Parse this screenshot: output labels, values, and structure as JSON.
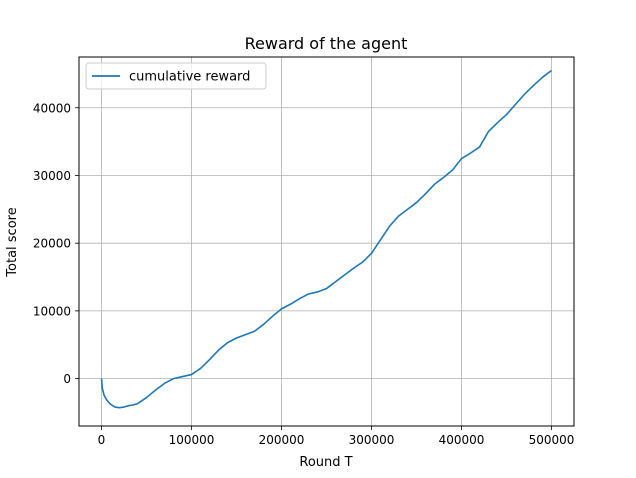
{
  "chart_data": {
    "type": "line",
    "title": "Reward of the agent",
    "xlabel": "Round T",
    "ylabel": "Total score",
    "xlim": [
      -25000,
      525000
    ],
    "ylim": [
      -7000,
      47500
    ],
    "xticks": [
      0,
      100000,
      200000,
      300000,
      400000,
      500000
    ],
    "xtick_labels": [
      "0",
      "100000",
      "200000",
      "300000",
      "400000",
      "500000"
    ],
    "yticks": [
      0,
      10000,
      20000,
      30000,
      40000
    ],
    "ytick_labels": [
      "0",
      "10000",
      "20000",
      "30000",
      "40000"
    ],
    "grid": true,
    "legend": {
      "position": "top-left"
    },
    "series": [
      {
        "name": "cumulative reward",
        "color": "#1f77b4",
        "x": [
          0,
          1000,
          3000,
          6000,
          10000,
          15000,
          20000,
          25000,
          30000,
          35000,
          40000,
          50000,
          60000,
          70000,
          80000,
          90000,
          100000,
          110000,
          120000,
          130000,
          140000,
          150000,
          160000,
          170000,
          180000,
          190000,
          200000,
          210000,
          220000,
          230000,
          240000,
          250000,
          260000,
          270000,
          280000,
          290000,
          300000,
          310000,
          320000,
          330000,
          340000,
          350000,
          360000,
          370000,
          380000,
          390000,
          400000,
          410000,
          420000,
          430000,
          440000,
          450000,
          460000,
          470000,
          480000,
          490000,
          500000
        ],
        "y": [
          0,
          -1500,
          -2500,
          -3200,
          -3800,
          -4200,
          -4300,
          -4200,
          -4000,
          -3900,
          -3700,
          -2800,
          -1700,
          -700,
          0,
          300,
          600,
          1500,
          2800,
          4200,
          5300,
          6000,
          6500,
          7000,
          8000,
          9200,
          10300,
          11000,
          11800,
          12500,
          12800,
          13300,
          14300,
          15300,
          16300,
          17200,
          18500,
          20500,
          22500,
          24000,
          25000,
          26000,
          27300,
          28700,
          29700,
          30800,
          32500,
          33300,
          34200,
          36500,
          37800,
          39000,
          40500,
          42000,
          43300,
          44500,
          45500
        ]
      }
    ]
  }
}
